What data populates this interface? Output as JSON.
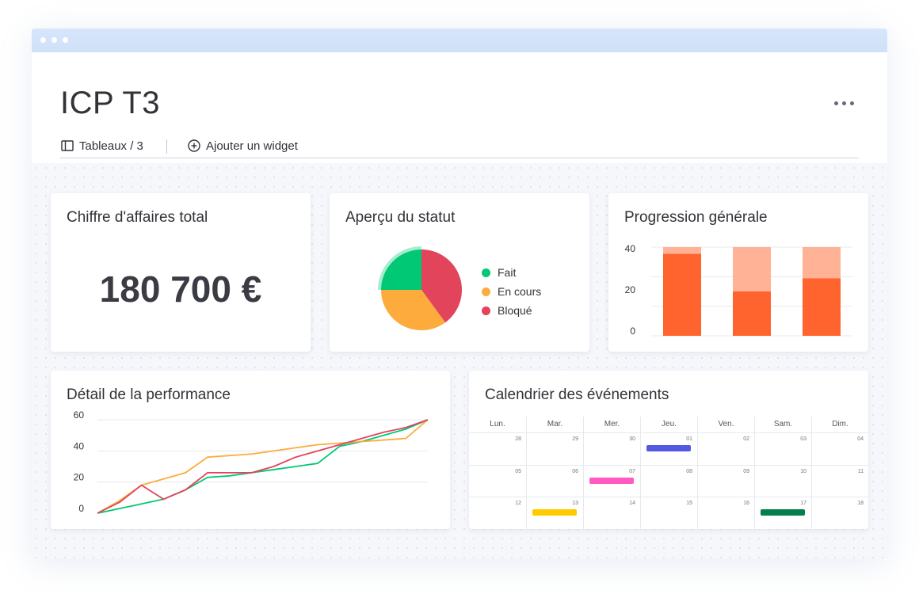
{
  "header": {
    "title": "ICP T3",
    "boards_label": "Tableaux / 3",
    "add_widget_label": "Ajouter un widget"
  },
  "widgets": {
    "revenue": {
      "title": "Chiffre d'affaires total",
      "value": "180 700 €"
    },
    "status": {
      "title": "Aperçu du statut",
      "legend": [
        {
          "label": "Fait",
          "color": "#00c875"
        },
        {
          "label": "En cours",
          "color": "#fdab3d"
        },
        {
          "label": "Bloqué",
          "color": "#e2445c"
        }
      ]
    },
    "progress": {
      "title": "Progression générale"
    },
    "performance": {
      "title": "Détail de la performance"
    },
    "calendar": {
      "title": "Calendrier des événements",
      "days": [
        "Lun.",
        "Mar.",
        "Mer.",
        "Jeu.",
        "Ven.",
        "Sam.",
        "Dim."
      ],
      "weeks": [
        [
          "28",
          "29",
          "30",
          "01",
          "02",
          "03",
          "04"
        ],
        [
          "05",
          "06",
          "07",
          "08",
          "09",
          "10",
          "11"
        ],
        [
          "12",
          "13",
          "14",
          "15",
          "16",
          "17",
          "18"
        ]
      ],
      "events": [
        {
          "week": 0,
          "day": 3,
          "color": "#5559df"
        },
        {
          "week": 1,
          "day": 2,
          "color": "#ff5ac4"
        },
        {
          "week": 2,
          "day": 1,
          "color": "#ffcb00"
        },
        {
          "week": 2,
          "day": 5,
          "color": "#037f4c"
        }
      ]
    }
  },
  "chart_data": [
    {
      "type": "pie",
      "labels": [
        "Fait",
        "En cours",
        "Bloqué"
      ],
      "values": [
        25,
        35,
        40
      ],
      "colors": [
        "#00c875",
        "#fdab3d",
        "#e2445c"
      ]
    },
    {
      "type": "bar",
      "stacked": true,
      "categories": [
        "",
        "",
        ""
      ],
      "series": [
        {
          "values": [
            37,
            20,
            26
          ],
          "color": "#ff642e"
        },
        {
          "values": [
            3,
            20,
            14
          ],
          "color": "#ffb295"
        }
      ],
      "yticks": [
        0,
        20,
        40
      ],
      "ylim": [
        0,
        40
      ],
      "grid": true
    },
    {
      "type": "line",
      "x": [
        0,
        1,
        2,
        3,
        4,
        5,
        6,
        7,
        8,
        9,
        10,
        11,
        12,
        13,
        14,
        15
      ],
      "series": [
        {
          "color": "#00c875",
          "values": [
            0,
            3,
            6,
            9,
            15,
            23,
            24,
            26,
            28,
            30,
            32,
            43,
            46,
            50,
            54,
            60
          ]
        },
        {
          "color": "#fdab3d",
          "values": [
            0,
            8,
            18,
            22,
            26,
            36,
            37,
            38,
            40,
            42,
            44,
            45,
            46,
            47,
            48,
            60
          ]
        },
        {
          "color": "#e2445c",
          "values": [
            0,
            7,
            18,
            9,
            15,
            26,
            26,
            26,
            30,
            36,
            40,
            44,
            48,
            52,
            55,
            60
          ]
        }
      ],
      "yticks": [
        0,
        20,
        40,
        60
      ],
      "ylim": [
        0,
        60
      ],
      "grid": true
    }
  ]
}
